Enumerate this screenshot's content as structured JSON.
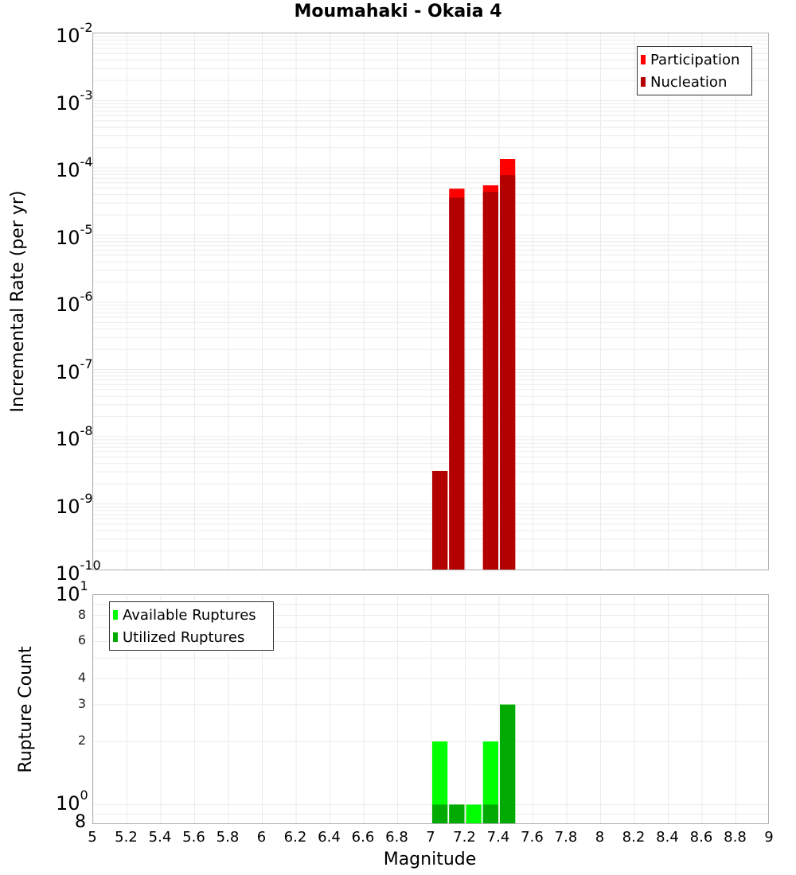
{
  "chart_data": [
    {
      "type": "bar",
      "title": "Moumahaki - Okaia 4",
      "xlabel": "Magnitude",
      "ylabel": "Incremental Rate (per yr)",
      "yscale": "log",
      "ylim": [
        1e-10,
        0.01
      ],
      "xlim": [
        5,
        9
      ],
      "bar_width": 0.1,
      "grid": true,
      "legend_position": "upper right",
      "y_tick_labels": [
        "10^-2",
        "10^-3",
        "10^-4",
        "10^-5",
        "10^-6",
        "10^-7",
        "10^-8",
        "10^-9",
        "10^-10"
      ],
      "x": [
        7.05,
        7.15,
        7.35,
        7.45
      ],
      "series": [
        {
          "name": "Participation",
          "color": "#ff0000",
          "values": [
            3.1e-09,
            4.9e-05,
            5.5e-05,
            0.000135
          ]
        },
        {
          "name": "Nucleation",
          "color": "#b30000",
          "values": [
            3.1e-09,
            3.6e-05,
            4.4e-05,
            7.8e-05
          ]
        }
      ]
    },
    {
      "type": "bar",
      "title": "",
      "xlabel": "Magnitude",
      "ylabel": "Rupture Count",
      "yscale": "log",
      "ylim": [
        0.8,
        10
      ],
      "xlim": [
        5,
        9
      ],
      "bar_width": 0.1,
      "grid": true,
      "legend_position": "upper left",
      "y_tick_labels": [
        "8",
        "10^0",
        "2",
        "3",
        "4",
        "6",
        "8",
        "10^1"
      ],
      "x_tick_labels": [
        "5",
        "5.2",
        "5.4",
        "5.6",
        "5.8",
        "6",
        "6.2",
        "6.4",
        "6.6",
        "6.8",
        "7",
        "7.2",
        "7.4",
        "7.6",
        "7.8",
        "8",
        "8.2",
        "8.4",
        "8.6",
        "8.8",
        "9"
      ],
      "x": [
        7.05,
        7.15,
        7.25,
        7.35,
        7.45
      ],
      "series": [
        {
          "name": "Available Ruptures",
          "color": "#00ff00",
          "values": [
            2,
            1,
            1,
            2,
            3
          ]
        },
        {
          "name": "Utilized Ruptures",
          "color": "#00aa00",
          "values": [
            1,
            1,
            0,
            1,
            3
          ]
        }
      ]
    }
  ],
  "page": {
    "title": "Moumahaki - Okaia 4",
    "top": {
      "ylabel": "Incremental Rate (per yr)",
      "legend": [
        {
          "label": "Participation",
          "color": "#ff0000"
        },
        {
          "label": "Nucleation",
          "color": "#b30000"
        }
      ],
      "yticks": [
        {
          "base": "10",
          "exp": "-2"
        },
        {
          "base": "10",
          "exp": "-3"
        },
        {
          "base": "10",
          "exp": "-4"
        },
        {
          "base": "10",
          "exp": "-5"
        },
        {
          "base": "10",
          "exp": "-6"
        },
        {
          "base": "10",
          "exp": "-7"
        },
        {
          "base": "10",
          "exp": "-8"
        },
        {
          "base": "10",
          "exp": "-9"
        },
        {
          "base": "10",
          "exp": "-10"
        }
      ]
    },
    "bottom": {
      "ylabel": "Rupture Count",
      "legend": [
        {
          "label": "Available Ruptures",
          "color": "#00ff00"
        },
        {
          "label": "Utilized Ruptures",
          "color": "#00aa00"
        }
      ],
      "major_ticks": [
        {
          "base": "10",
          "exp": "1"
        },
        {
          "base": "10",
          "exp": "0"
        }
      ],
      "minor_ticks": [
        "8",
        "6",
        "4",
        "3",
        "2"
      ],
      "bottom_tick": "8"
    },
    "xlabel": "Magnitude",
    "xticks": [
      "5",
      "5.2",
      "5.4",
      "5.6",
      "5.8",
      "6",
      "6.2",
      "6.4",
      "6.6",
      "6.8",
      "7",
      "7.2",
      "7.4",
      "7.6",
      "7.8",
      "8",
      "8.2",
      "8.4",
      "8.6",
      "8.8",
      "9"
    ]
  }
}
